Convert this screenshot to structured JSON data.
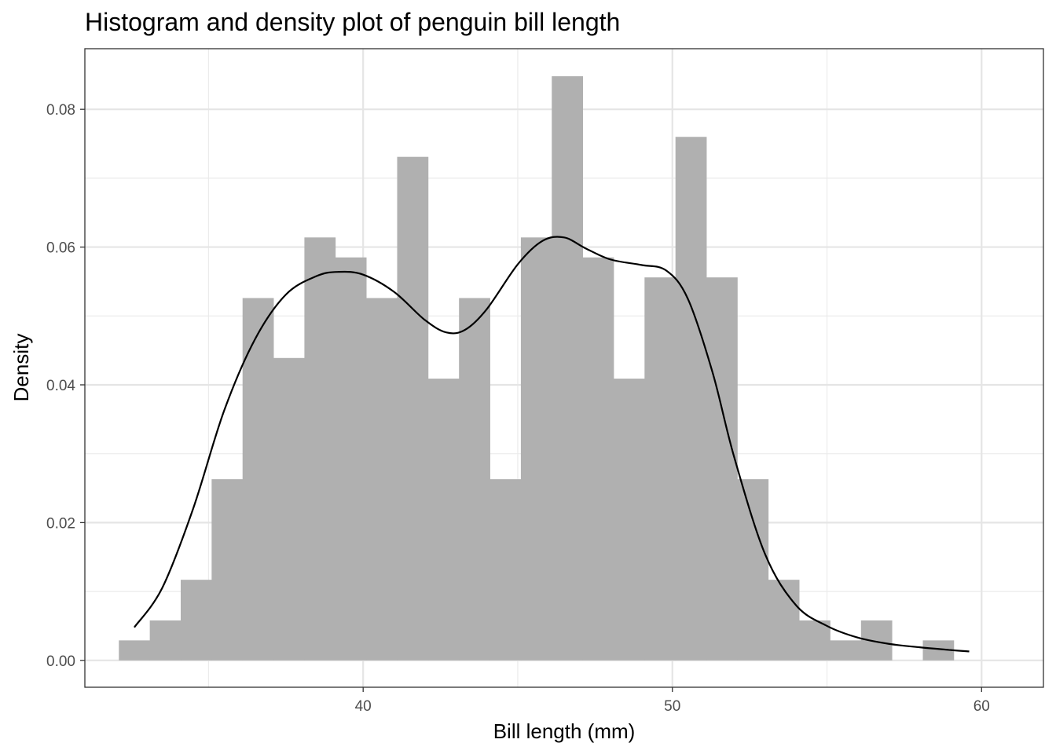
{
  "chart_data": {
    "type": "bar",
    "title": "Histogram and density plot of penguin bill length",
    "xlabel": "Bill length (mm)",
    "ylabel": "Density",
    "xlim": [
      31.0,
      62.0
    ],
    "ylim": [
      -0.0039,
      0.0888
    ],
    "x_ticks": [
      40,
      50,
      60
    ],
    "x_minor_ticks": [
      35,
      45,
      55
    ],
    "y_ticks": [
      0.0,
      0.02,
      0.04,
      0.06,
      0.08
    ],
    "y_tick_labels": [
      "0.00",
      "0.02",
      "0.04",
      "0.06",
      "0.08"
    ],
    "y_minor_ticks": [
      0.01,
      0.03,
      0.05,
      0.07
    ],
    "grid": true,
    "histogram": {
      "bin_starts": [
        32.1,
        33.1,
        34.1,
        35.1,
        36.1,
        37.1,
        38.1,
        39.1,
        40.1,
        41.1,
        42.1,
        43.1,
        44.1,
        45.1,
        46.1,
        47.1,
        48.1,
        49.1,
        50.1,
        51.1,
        52.1,
        53.1,
        54.1,
        55.1,
        56.1,
        57.1,
        58.1,
        59.1
      ],
      "bin_width": 1.0,
      "values": [
        0.0029,
        0.0058,
        0.0117,
        0.0263,
        0.0526,
        0.0439,
        0.0614,
        0.0585,
        0.0526,
        0.0731,
        0.0409,
        0.0526,
        0.0263,
        0.0614,
        0.0848,
        0.0585,
        0.0409,
        0.0556,
        0.076,
        0.0556,
        0.0263,
        0.0117,
        0.0058,
        0.0029,
        0.0058,
        0.0,
        0.0029,
        0.0
      ],
      "fill": "#b0b0b0"
    },
    "density": {
      "x": [
        32.6,
        33.5,
        34.5,
        35.5,
        36.5,
        37.5,
        38.5,
        39.2,
        40.0,
        41.0,
        42.0,
        42.7,
        43.3,
        44.0,
        45.0,
        45.8,
        46.5,
        47.2,
        48.0,
        49.0,
        49.8,
        50.5,
        51.3,
        52.0,
        53.0,
        54.0,
        55.0,
        56.0,
        57.0,
        58.0,
        59.0,
        59.6
      ],
      "y": [
        0.0048,
        0.0105,
        0.022,
        0.0362,
        0.0466,
        0.0531,
        0.0558,
        0.0564,
        0.056,
        0.0535,
        0.0494,
        0.0476,
        0.048,
        0.051,
        0.0575,
        0.0609,
        0.0614,
        0.0598,
        0.0582,
        0.0574,
        0.0566,
        0.0525,
        0.0418,
        0.0295,
        0.0154,
        0.008,
        0.005,
        0.0033,
        0.0024,
        0.0019,
        0.0015,
        0.0013
      ],
      "color": "#000000"
    }
  }
}
